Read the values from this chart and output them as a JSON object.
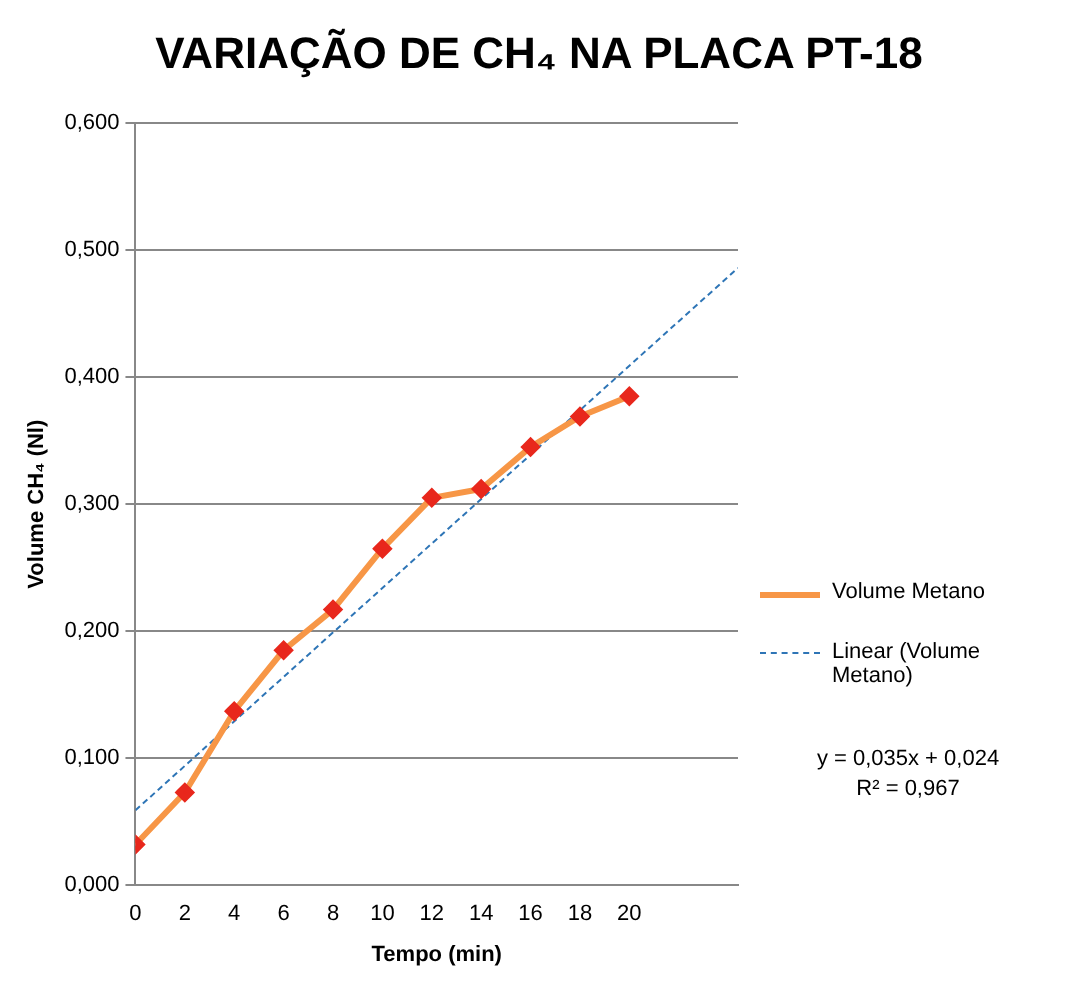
{
  "chart_data": {
    "type": "line",
    "title": "VARIAÇÃO DE CH₄ NA PLACA PT-18",
    "xlabel": "Tempo (min)",
    "ylabel": "Volume CH₄ (Nl)",
    "x": [
      0,
      2,
      4,
      6,
      8,
      10,
      12,
      14,
      16,
      18,
      20
    ],
    "series": [
      {
        "name": "Volume Metano",
        "color": "#f79646",
        "marker": "diamond",
        "line_style": "solid",
        "values": [
          0.032,
          0.073,
          0.137,
          0.185,
          0.217,
          0.265,
          0.305,
          0.312,
          0.345,
          0.369,
          0.385
        ]
      },
      {
        "name": "Linear (Volume Metano)",
        "color": "#2e75b6",
        "marker": "none",
        "line_style": "dashed",
        "x": [
          0,
          24.4
        ],
        "values": [
          0.059,
          0.486
        ]
      }
    ],
    "xlim": [
      0,
      24.4
    ],
    "xticks": [
      0,
      2,
      4,
      6,
      8,
      10,
      12,
      14,
      16,
      18,
      20
    ],
    "ylim": [
      0,
      0.6
    ],
    "yticks": [
      {
        "value": 0,
        "label": "0,000"
      },
      {
        "value": 0.1,
        "label": "0,100"
      },
      {
        "value": 0.2,
        "label": "0,200"
      },
      {
        "value": 0.3,
        "label": "0,300"
      },
      {
        "value": 0.4,
        "label": "0,400"
      },
      {
        "value": 0.5,
        "label": "0,500"
      },
      {
        "value": 0.6,
        "label": "0,600"
      }
    ],
    "grid": "y",
    "legend": "right",
    "annotations": [
      "y = 0,035x + 0,024",
      "R² = 0,967"
    ]
  }
}
